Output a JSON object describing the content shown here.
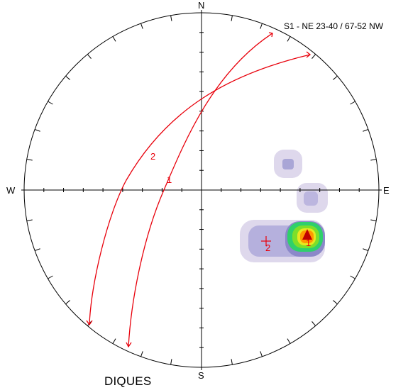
{
  "title": "S1 - NE 23-40 / 67-52 NW",
  "footer": "DIQUES",
  "compass": {
    "north": "N",
    "south": "S",
    "east": "E",
    "west": "W"
  },
  "planes": [
    {
      "label": "1"
    },
    {
      "label": "2"
    }
  ],
  "pole_markers": [
    {
      "label": "1"
    },
    {
      "label": "2"
    }
  ],
  "colors": {
    "plane": "#e8000b",
    "contour_low": "#a9a6d6",
    "contour_mid": "#3fc23f",
    "contour_high": "#ff2a00",
    "max_pole": "#c00000"
  }
}
